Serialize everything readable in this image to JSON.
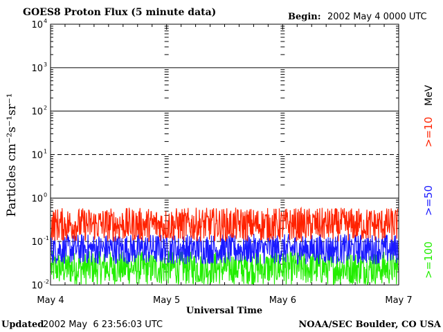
{
  "header": {
    "title": "GOES8 Proton Flux (5 minute data)",
    "begin_label": "Begin:",
    "begin_value": "2002 May 4 0000 UTC"
  },
  "footer": {
    "updated_label": "Updated",
    "updated_value": "2002 May  6 23:56:03 UTC",
    "credit": "NOAA/SEC Boulder, CO USA"
  },
  "colors": {
    "ge10": "#ff2200",
    "ge50": "#1a1aff",
    "ge100": "#22ee00",
    "axis": "#000000",
    "background": "#ffffff"
  },
  "chart_data": {
    "type": "line",
    "title": "GOES8 Proton Flux (5 minute data)",
    "xlabel": "Universal Time",
    "ylabel": "Particles cm⁻²s⁻¹sr⁻¹",
    "yscale": "log",
    "ylim": [
      0.01,
      10000
    ],
    "y_ticks": [
      {
        "value": 0.01,
        "base": "10",
        "exp": "-2"
      },
      {
        "value": 0.1,
        "base": "10",
        "exp": "-1"
      },
      {
        "value": 1,
        "base": "10",
        "exp": "0"
      },
      {
        "value": 10,
        "base": "10",
        "exp": "1"
      },
      {
        "value": 100,
        "base": "10",
        "exp": "2"
      },
      {
        "value": 1000,
        "base": "10",
        "exp": "3"
      },
      {
        "value": 10000,
        "base": "10",
        "exp": "4"
      }
    ],
    "x_ticks": [
      "May 4",
      "May 5",
      "May 6",
      "May 7"
    ],
    "xlim": [
      "2002-05-04 00:00",
      "2002-05-07 00:00"
    ],
    "threshold_lines": [
      {
        "value": 10,
        "style": "dashed"
      },
      {
        "value": 0.1,
        "style": "dashed"
      }
    ],
    "grid": true,
    "legend": {
      "placement": "right",
      "unit": "MeV",
      "entries": [
        {
          "label": ">=10",
          "color": "#ff2200"
        },
        {
          "label": ">=50",
          "color": "#1a1aff"
        },
        {
          "label": ">=100",
          "color": "#22ee00"
        }
      ]
    },
    "series": [
      {
        "name": ">=10",
        "color": "#ff2200",
        "typical_range": [
          0.1,
          0.6
        ]
      },
      {
        "name": ">=50",
        "color": "#1a1aff",
        "typical_range": [
          0.03,
          0.15
        ]
      },
      {
        "name": ">=100",
        "color": "#22ee00",
        "typical_range": [
          0.01,
          0.06
        ]
      }
    ]
  }
}
